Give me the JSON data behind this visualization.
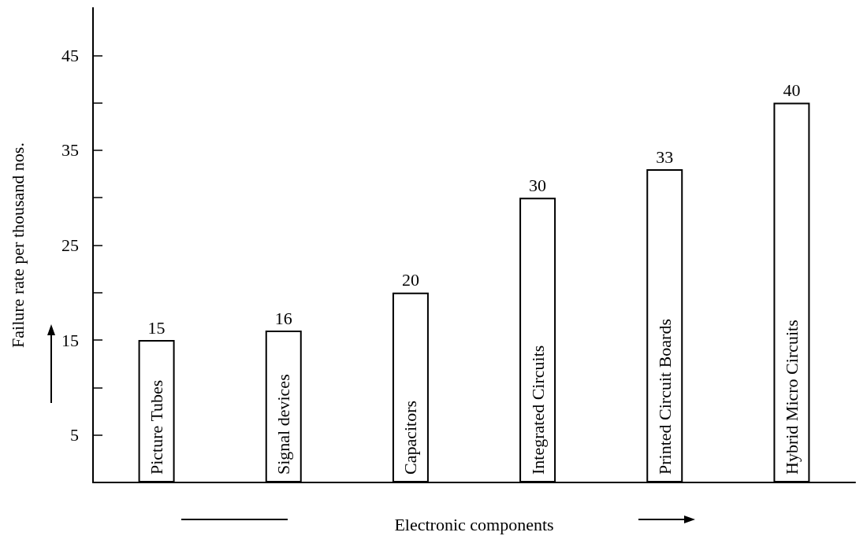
{
  "chart_data": {
    "type": "bar",
    "xlabel": "Electronic components",
    "ylabel": "Failure rate per thousand nos.",
    "categories": [
      "Picture Tubes",
      "Signal devices",
      "Capacitors",
      "Integrated Circuits",
      "Printed Circuit Boards",
      "Hybrid Micro Circuits"
    ],
    "values": [
      15,
      16,
      20,
      30,
      33,
      40
    ],
    "color": "#ffffff",
    "data_labels": true,
    "ylim": [
      0,
      50
    ],
    "yticks": [
      5,
      {
        "value": 10,
        "label": null
      },
      15,
      {
        "value": 20,
        "label": null
      },
      25,
      {
        "value": 30,
        "label": null
      },
      35,
      {
        "value": 40,
        "label": null
      },
      45
    ],
    "grid": false
  }
}
